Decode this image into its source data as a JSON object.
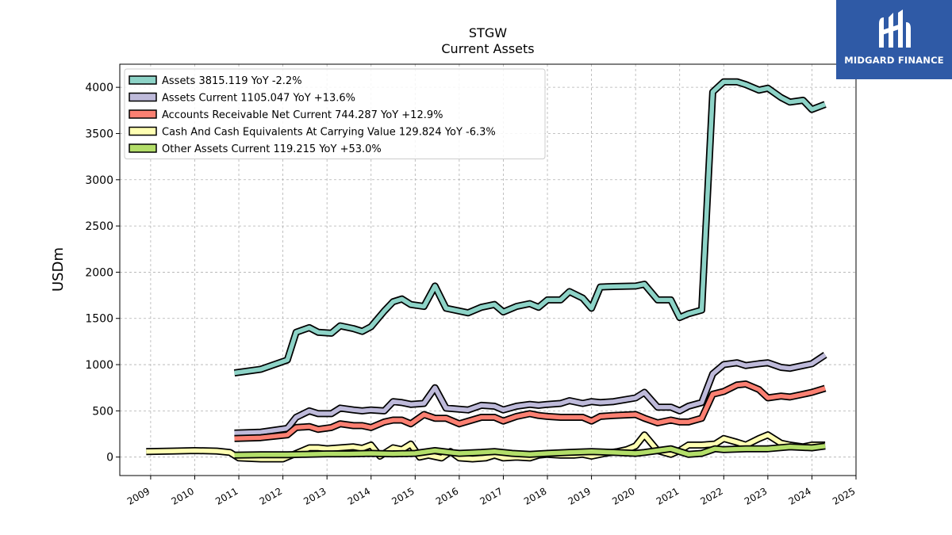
{
  "logo": {
    "text": "MIDGARD FINANCE",
    "color": "#2f5aa6"
  },
  "chart_data": {
    "type": "line",
    "title": "STGW",
    "subtitle": "Current  Assets",
    "ylabel": "USDm",
    "xlim": [
      2008.3,
      2025.0
    ],
    "ylim": [
      -200,
      4250
    ],
    "xticks": [
      "2009",
      "2010",
      "2011",
      "2012",
      "2013",
      "2014",
      "2015",
      "2016",
      "2017",
      "2018",
      "2019",
      "2020",
      "2021",
      "2022",
      "2023",
      "2024",
      "2025"
    ],
    "yticks": [
      0,
      500,
      1000,
      1500,
      2000,
      2500,
      3000,
      3500,
      4000
    ],
    "grid": true,
    "legend_position": "top-left",
    "series": [
      {
        "name": "Assets  3815.119 YoY -2.2%",
        "color": "#8dd3c7",
        "points": [
          [
            2010.9,
            910
          ],
          [
            2011.5,
            950
          ],
          [
            2012.1,
            1050
          ],
          [
            2012.3,
            1350
          ],
          [
            2012.6,
            1400
          ],
          [
            2012.8,
            1350
          ],
          [
            2013.1,
            1340
          ],
          [
            2013.3,
            1420
          ],
          [
            2013.6,
            1390
          ],
          [
            2013.8,
            1360
          ],
          [
            2014.0,
            1410
          ],
          [
            2014.3,
            1580
          ],
          [
            2014.5,
            1680
          ],
          [
            2014.7,
            1710
          ],
          [
            2014.9,
            1650
          ],
          [
            2015.2,
            1630
          ],
          [
            2015.45,
            1850
          ],
          [
            2015.7,
            1610
          ],
          [
            2016.2,
            1560
          ],
          [
            2016.5,
            1620
          ],
          [
            2016.8,
            1650
          ],
          [
            2017.0,
            1570
          ],
          [
            2017.3,
            1630
          ],
          [
            2017.6,
            1660
          ],
          [
            2017.8,
            1620
          ],
          [
            2018.0,
            1700
          ],
          [
            2018.3,
            1700
          ],
          [
            2018.5,
            1790
          ],
          [
            2018.8,
            1720
          ],
          [
            2019.0,
            1610
          ],
          [
            2019.2,
            1840
          ],
          [
            2019.5,
            1845
          ],
          [
            2020.0,
            1850
          ],
          [
            2020.2,
            1870
          ],
          [
            2020.5,
            1700
          ],
          [
            2020.8,
            1700
          ],
          [
            2021.0,
            1510
          ],
          [
            2021.2,
            1550
          ],
          [
            2021.5,
            1590
          ],
          [
            2021.75,
            3950
          ],
          [
            2022.0,
            4060
          ],
          [
            2022.3,
            4060
          ],
          [
            2022.5,
            4030
          ],
          [
            2022.8,
            3970
          ],
          [
            2023.0,
            3990
          ],
          [
            2023.3,
            3890
          ],
          [
            2023.5,
            3840
          ],
          [
            2023.8,
            3860
          ],
          [
            2024.0,
            3760
          ],
          [
            2024.3,
            3815
          ]
        ]
      },
      {
        "name": "Assets Current  1105.047 YoY +13.6%",
        "color": "#bebada",
        "points": [
          [
            2010.9,
            260
          ],
          [
            2011.5,
            270
          ],
          [
            2012.1,
            310
          ],
          [
            2012.3,
            430
          ],
          [
            2012.6,
            500
          ],
          [
            2012.8,
            470
          ],
          [
            2013.1,
            470
          ],
          [
            2013.3,
            530
          ],
          [
            2013.6,
            510
          ],
          [
            2013.8,
            500
          ],
          [
            2014.0,
            510
          ],
          [
            2014.3,
            500
          ],
          [
            2014.5,
            600
          ],
          [
            2014.7,
            590
          ],
          [
            2014.9,
            570
          ],
          [
            2015.2,
            580
          ],
          [
            2015.45,
            750
          ],
          [
            2015.7,
            530
          ],
          [
            2016.2,
            510
          ],
          [
            2016.5,
            560
          ],
          [
            2016.8,
            550
          ],
          [
            2017.0,
            510
          ],
          [
            2017.3,
            550
          ],
          [
            2017.6,
            570
          ],
          [
            2017.8,
            560
          ],
          [
            2018.0,
            570
          ],
          [
            2018.3,
            580
          ],
          [
            2018.5,
            610
          ],
          [
            2018.8,
            580
          ],
          [
            2019.0,
            600
          ],
          [
            2019.2,
            590
          ],
          [
            2019.5,
            600
          ],
          [
            2020.0,
            640
          ],
          [
            2020.2,
            700
          ],
          [
            2020.5,
            540
          ],
          [
            2020.8,
            540
          ],
          [
            2021.0,
            500
          ],
          [
            2021.2,
            550
          ],
          [
            2021.5,
            590
          ],
          [
            2021.75,
            900
          ],
          [
            2022.0,
            1000
          ],
          [
            2022.3,
            1020
          ],
          [
            2022.5,
            990
          ],
          [
            2022.8,
            1010
          ],
          [
            2023.0,
            1020
          ],
          [
            2023.3,
            970
          ],
          [
            2023.5,
            960
          ],
          [
            2023.8,
            990
          ],
          [
            2024.0,
            1010
          ],
          [
            2024.3,
            1105
          ]
        ]
      },
      {
        "name": "Accounts Receivable Net Current  744.287 YoY +12.9%",
        "color": "#fb8072",
        "points": [
          [
            2010.9,
            200
          ],
          [
            2011.5,
            210
          ],
          [
            2012.1,
            240
          ],
          [
            2012.3,
            320
          ],
          [
            2012.6,
            330
          ],
          [
            2012.8,
            300
          ],
          [
            2013.1,
            320
          ],
          [
            2013.3,
            360
          ],
          [
            2013.6,
            340
          ],
          [
            2013.8,
            340
          ],
          [
            2014.0,
            320
          ],
          [
            2014.3,
            380
          ],
          [
            2014.5,
            400
          ],
          [
            2014.7,
            400
          ],
          [
            2014.9,
            360
          ],
          [
            2015.2,
            460
          ],
          [
            2015.45,
            420
          ],
          [
            2015.7,
            420
          ],
          [
            2016.0,
            360
          ],
          [
            2016.5,
            430
          ],
          [
            2016.8,
            430
          ],
          [
            2017.0,
            390
          ],
          [
            2017.3,
            440
          ],
          [
            2017.6,
            470
          ],
          [
            2017.8,
            450
          ],
          [
            2018.0,
            440
          ],
          [
            2018.3,
            430
          ],
          [
            2018.5,
            430
          ],
          [
            2018.8,
            430
          ],
          [
            2019.0,
            390
          ],
          [
            2019.2,
            440
          ],
          [
            2019.5,
            450
          ],
          [
            2020.0,
            460
          ],
          [
            2020.2,
            420
          ],
          [
            2020.5,
            370
          ],
          [
            2020.8,
            400
          ],
          [
            2021.0,
            380
          ],
          [
            2021.2,
            380
          ],
          [
            2021.5,
            420
          ],
          [
            2021.75,
            680
          ],
          [
            2022.0,
            710
          ],
          [
            2022.3,
            780
          ],
          [
            2022.5,
            790
          ],
          [
            2022.8,
            730
          ],
          [
            2023.0,
            640
          ],
          [
            2023.3,
            660
          ],
          [
            2023.5,
            650
          ],
          [
            2023.8,
            680
          ],
          [
            2024.0,
            700
          ],
          [
            2024.3,
            744
          ]
        ]
      },
      {
        "name": "Cash And Cash Equivalents At Carrying Value  129.824 YoY -6.3%",
        "color": "#ffffb3",
        "points": [
          [
            2008.9,
            60
          ],
          [
            2009.5,
            65
          ],
          [
            2010.0,
            70
          ],
          [
            2010.5,
            65
          ],
          [
            2010.8,
            50
          ],
          [
            2011.0,
            -10
          ],
          [
            2011.5,
            -20
          ],
          [
            2012.0,
            -20
          ],
          [
            2012.3,
            40
          ],
          [
            2012.6,
            100
          ],
          [
            2012.8,
            100
          ],
          [
            2013.0,
            90
          ],
          [
            2013.3,
            100
          ],
          [
            2013.6,
            110
          ],
          [
            2013.8,
            95
          ],
          [
            2014.0,
            130
          ],
          [
            2014.2,
            10
          ],
          [
            2014.5,
            100
          ],
          [
            2014.7,
            80
          ],
          [
            2014.9,
            140
          ],
          [
            2015.1,
            0
          ],
          [
            2015.3,
            20
          ],
          [
            2015.6,
            -10
          ],
          [
            2015.8,
            60
          ],
          [
            2016.0,
            -10
          ],
          [
            2016.3,
            -20
          ],
          [
            2016.6,
            -10
          ],
          [
            2016.8,
            20
          ],
          [
            2017.0,
            -10
          ],
          [
            2017.3,
            0
          ],
          [
            2017.6,
            -10
          ],
          [
            2017.8,
            20
          ],
          [
            2018.0,
            30
          ],
          [
            2018.3,
            20
          ],
          [
            2018.6,
            20
          ],
          [
            2018.8,
            30
          ],
          [
            2019.0,
            10
          ],
          [
            2019.3,
            40
          ],
          [
            2019.6,
            60
          ],
          [
            2019.8,
            80
          ],
          [
            2020.0,
            120
          ],
          [
            2020.2,
            240
          ],
          [
            2020.5,
            70
          ],
          [
            2020.8,
            30
          ],
          [
            2021.0,
            70
          ],
          [
            2021.2,
            130
          ],
          [
            2021.5,
            130
          ],
          [
            2021.8,
            140
          ],
          [
            2022.0,
            200
          ],
          [
            2022.3,
            160
          ],
          [
            2022.5,
            130
          ],
          [
            2022.8,
            200
          ],
          [
            2023.0,
            240
          ],
          [
            2023.3,
            150
          ],
          [
            2023.5,
            130
          ],
          [
            2023.8,
            110
          ],
          [
            2024.0,
            130
          ],
          [
            2024.3,
            130
          ]
        ]
      },
      {
        "name": "Other Assets Current  119.215 YoY +53.0%",
        "color": "#b3de69",
        "points": [
          [
            2010.9,
            20
          ],
          [
            2011.5,
            25
          ],
          [
            2012.1,
            25
          ],
          [
            2012.5,
            30
          ],
          [
            2013.0,
            35
          ],
          [
            2013.5,
            35
          ],
          [
            2014.0,
            40
          ],
          [
            2014.5,
            35
          ],
          [
            2015.0,
            40
          ],
          [
            2015.45,
            70
          ],
          [
            2015.8,
            50
          ],
          [
            2016.0,
            40
          ],
          [
            2016.5,
            50
          ],
          [
            2016.8,
            60
          ],
          [
            2017.2,
            40
          ],
          [
            2017.6,
            30
          ],
          [
            2018.0,
            40
          ],
          [
            2018.5,
            50
          ],
          [
            2019.0,
            60
          ],
          [
            2019.5,
            50
          ],
          [
            2020.0,
            40
          ],
          [
            2020.2,
            50
          ],
          [
            2020.5,
            70
          ],
          [
            2020.8,
            90
          ],
          [
            2021.0,
            60
          ],
          [
            2021.2,
            30
          ],
          [
            2021.5,
            40
          ],
          [
            2021.8,
            90
          ],
          [
            2022.0,
            80
          ],
          [
            2022.5,
            90
          ],
          [
            2023.0,
            90
          ],
          [
            2023.5,
            110
          ],
          [
            2024.0,
            100
          ],
          [
            2024.3,
            119
          ]
        ]
      }
    ]
  }
}
